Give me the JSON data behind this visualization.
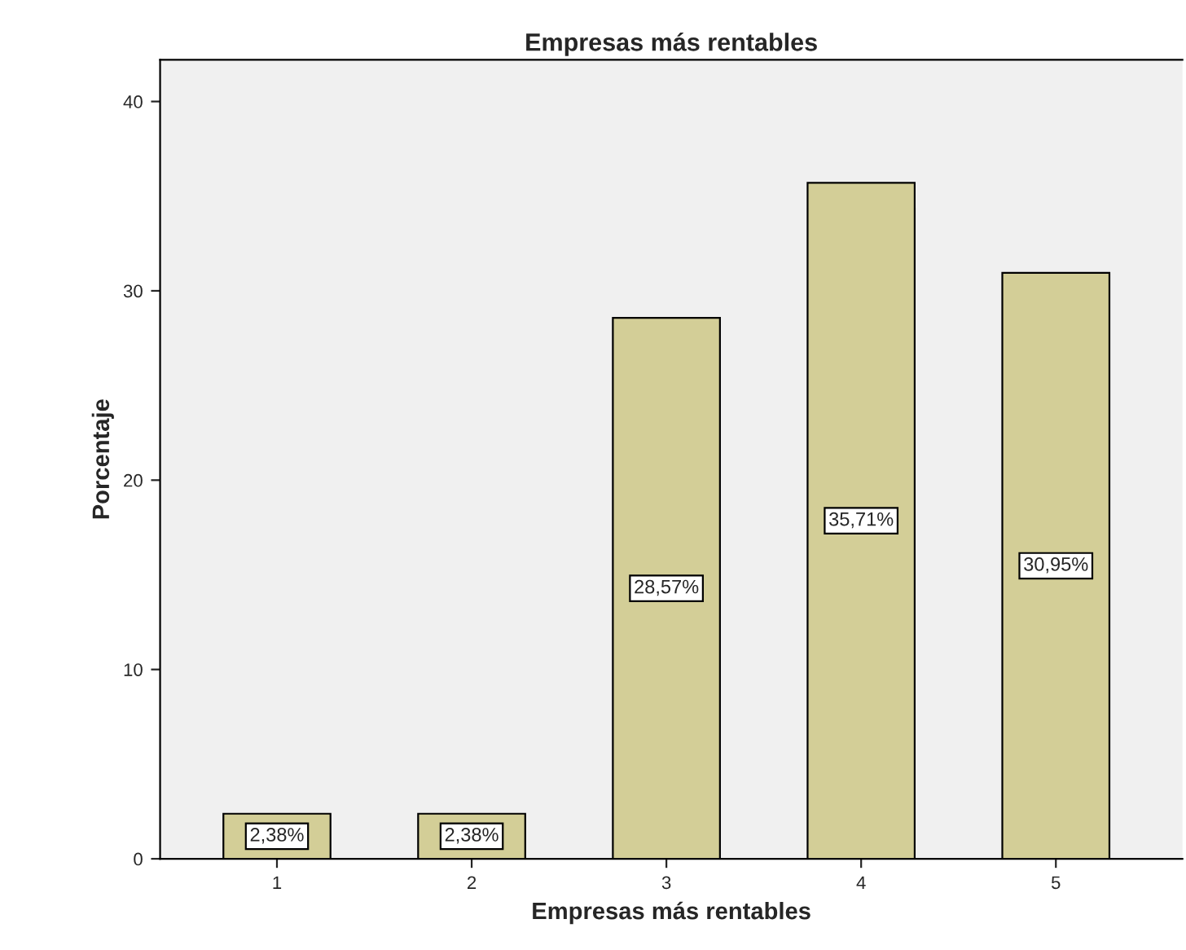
{
  "chart_data": {
    "type": "bar",
    "title": "Empresas más rentables",
    "xlabel": "Empresas más rentables",
    "ylabel": "Porcentaje",
    "categories": [
      "1",
      "2",
      "3",
      "4",
      "5"
    ],
    "values": [
      2.38,
      2.38,
      28.57,
      35.71,
      30.95
    ],
    "value_labels": [
      "2,38%",
      "2,38%",
      "28,57%",
      "35,71%",
      "30,95%"
    ],
    "color": "#d3ce97",
    "ylim": [
      0,
      42.2
    ],
    "yticks": [
      0,
      10,
      20,
      30,
      40
    ],
    "grid": false,
    "legend": false
  }
}
